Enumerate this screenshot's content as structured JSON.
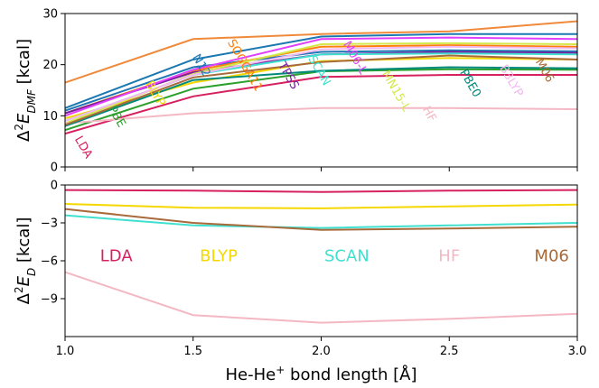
{
  "chart_data": [
    {
      "type": "line",
      "ylabel_main": "Δ",
      "ylabel_sup": "2",
      "ylabel_var": "E",
      "ylabel_sub": "DMF",
      "ylabel_unit": " [kcal]",
      "ylim": [
        0,
        30
      ],
      "yticks": [
        "0",
        "10",
        "20",
        "30"
      ],
      "xlim": [
        1.0,
        3.0
      ],
      "x": [
        1.0,
        1.5,
        2.0,
        2.5,
        3.0
      ],
      "series": [
        {
          "name": "LDA",
          "color": "#d62060",
          "values": [
            6.5,
            13.8,
            17.6,
            18.0,
            18.0
          ],
          "label_x": 1.06,
          "label_y": 3.5,
          "rotate": 60
        },
        {
          "name": "PBE",
          "color": "#2ca02c",
          "values": [
            7.2,
            15.3,
            18.7,
            19.1,
            19.0
          ],
          "label_x": 1.19,
          "label_y": 9.5,
          "rotate": 60
        },
        {
          "name": "BLYP",
          "color": "#f5d800",
          "values": [
            9.5,
            16.5,
            20.7,
            21.3,
            21.0
          ],
          "label_x": 1.34,
          "label_y": 14.0,
          "rotate": 60
        },
        {
          "name": "N12",
          "color": "#1f77b4",
          "values": [
            11.0,
            19.5,
            22.5,
            22.8,
            22.6
          ],
          "label_x": 1.52,
          "label_y": 19.5,
          "rotate": 60
        },
        {
          "name": "SOGGA11",
          "color": "#ff7f0e",
          "values": [
            10.5,
            18.8,
            23.5,
            23.8,
            23.5
          ],
          "label_x": 1.69,
          "label_y": 19.5,
          "rotate": 60
        },
        {
          "name": "TPSS",
          "color": "#7b1fa2",
          "values": [
            10.5,
            18.5,
            22.0,
            22.5,
            22.3
          ],
          "label_x": 1.86,
          "label_y": 17.5,
          "rotate": 60
        },
        {
          "name": "SCAN",
          "color": "#40e0d0",
          "values": [
            9.0,
            18.0,
            22.0,
            22.2,
            22.0
          ],
          "label_x": 1.98,
          "label_y": 18.5,
          "rotate": 60
        },
        {
          "name": "M06-L",
          "color": "#e040fb",
          "values": [
            10.0,
            19.0,
            25.0,
            25.3,
            25.0
          ],
          "label_x": 2.12,
          "label_y": 21.0,
          "rotate": 60
        },
        {
          "name": "MN15-L",
          "color": "#d4e84a",
          "values": [
            8.5,
            18.2,
            24.0,
            24.2,
            24.0
          ],
          "label_x": 2.28,
          "label_y": 14.5,
          "rotate": 60
        },
        {
          "name": "HF",
          "color": "#f4b8c4",
          "values": [
            8.5,
            10.5,
            11.5,
            11.5,
            11.3
          ],
          "label_x": 2.41,
          "label_y": 10.0,
          "rotate": 60
        },
        {
          "name": "PBE0",
          "color": "#00897b",
          "values": [
            8.0,
            17.0,
            18.8,
            19.5,
            19.3
          ],
          "label_x": 2.57,
          "label_y": 16.0,
          "rotate": 60
        },
        {
          "name": "B3LYP",
          "color": "#f2b8f0",
          "values": [
            9.0,
            18.0,
            23.0,
            23.5,
            23.2
          ],
          "label_x": 2.73,
          "label_y": 16.5,
          "rotate": 60
        },
        {
          "name": "M06",
          "color": "#a86a3a",
          "values": [
            8.2,
            17.5,
            20.5,
            21.8,
            21.0
          ],
          "label_x": 2.86,
          "label_y": 18.5,
          "rotate": 60
        },
        {
          "name": "",
          "color": "#f08a3a",
          "values": [
            16.5,
            25.0,
            26.0,
            26.5,
            28.5
          ]
        },
        {
          "name": "",
          "color": "#1a78b0",
          "values": [
            11.5,
            21.0,
            25.5,
            26.0,
            26.0
          ]
        }
      ]
    },
    {
      "type": "line",
      "ylabel_main": "Δ",
      "ylabel_sup": "2",
      "ylabel_var": "E",
      "ylabel_sub": "D",
      "ylabel_unit": " [kcal]",
      "ylim": [
        -12,
        0
      ],
      "yticks": [
        "0",
        "−3",
        "−6",
        "−9"
      ],
      "ytick_values": [
        0,
        -3,
        -6,
        -9
      ],
      "xlim": [
        1.0,
        3.0
      ],
      "x": [
        1.0,
        1.5,
        2.0,
        2.5,
        3.0
      ],
      "xticks": [
        "1.0",
        "1.5",
        "2.0",
        "2.5",
        "3.0"
      ],
      "xlabel_main": "He-He",
      "xlabel_sup": "+",
      "xlabel_unit": " bond length [Å]",
      "series": [
        {
          "name": "LDA",
          "color": "#d62060",
          "values": [
            -0.4,
            -0.45,
            -0.55,
            -0.45,
            -0.4
          ]
        },
        {
          "name": "BLYP",
          "color": "#f5d800",
          "values": [
            -1.5,
            -1.8,
            -1.85,
            -1.7,
            -1.55
          ]
        },
        {
          "name": "SCAN",
          "color": "#40e0d0",
          "values": [
            -2.4,
            -3.2,
            -3.4,
            -3.2,
            -3.0
          ]
        },
        {
          "name": "HF",
          "color": "#f4b8c4",
          "values": [
            -6.9,
            -10.3,
            -10.9,
            -10.6,
            -10.2
          ]
        },
        {
          "name": "M06",
          "color": "#a86a3a",
          "values": [
            -1.9,
            -3.0,
            -3.55,
            -3.45,
            -3.3
          ]
        }
      ],
      "legend": [
        {
          "name": "LDA",
          "color": "#d62060",
          "x": 1.2
        },
        {
          "name": "BLYP",
          "color": "#f5d800",
          "x": 1.6
        },
        {
          "name": "SCAN",
          "color": "#40e0d0",
          "x": 2.1
        },
        {
          "name": "HF",
          "color": "#f4b8c4",
          "x": 2.5
        },
        {
          "name": "M06",
          "color": "#a86a3a",
          "x": 2.9
        }
      ],
      "legend_y": -5.6
    }
  ]
}
